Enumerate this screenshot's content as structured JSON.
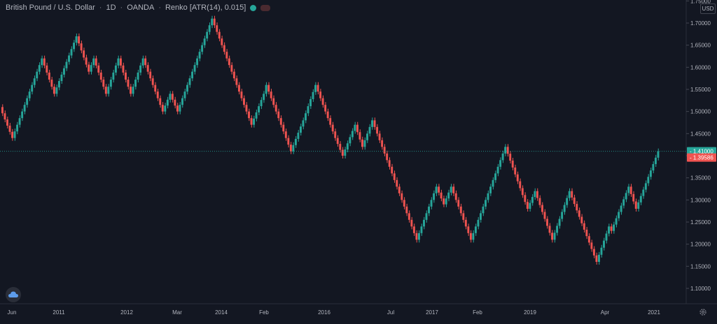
{
  "header": {
    "symbol": "British Pound / U.S. Dollar",
    "interval": "1D",
    "exchange": "OANDA",
    "study": "Renko [ATR(14), 0.015]"
  },
  "axis": {
    "currency": "USD",
    "price_labels": [
      "1.75000",
      "1.70000",
      "1.65000",
      "1.60000",
      "1.55000",
      "1.50000",
      "1.45000",
      "1.40000",
      "1.35000",
      "1.30000",
      "1.25000",
      "1.20000",
      "1.15000",
      "1.10000"
    ],
    "time_labels": [
      "Jun",
      "2011",
      "2012",
      "Mar",
      "2014",
      "Feb",
      "2016",
      "Jul",
      "2017",
      "Feb",
      "2019",
      "Apr",
      "2021"
    ]
  },
  "price_tags": {
    "last": {
      "value": "1.41000",
      "color": "#26a69a"
    },
    "close": {
      "value": "1.39586",
      "color": "#ef5350"
    }
  },
  "colors": {
    "background": "#131722",
    "up": "#26a69a",
    "down": "#ef5350",
    "grid": "#1e222d",
    "axis_text": "#b2b5be"
  },
  "icons": {
    "logo": "tradingview-cloud-icon",
    "settings": "gear-icon"
  },
  "chart_data": {
    "type": "renko",
    "brick_size": 0.015,
    "ylim": [
      1.08,
      1.76
    ],
    "y_ticks": [
      1.75,
      1.7,
      1.65,
      1.6,
      1.55,
      1.5,
      1.45,
      1.4,
      1.35,
      1.3,
      1.25,
      1.2,
      1.15,
      1.1
    ],
    "time_axis": [
      "Jun",
      "2011",
      "2012",
      "Mar",
      "2014",
      "Feb",
      "2016",
      "Jul",
      "2017",
      "Feb",
      "2019",
      "Apr",
      "2021"
    ],
    "last_price": 1.41,
    "close_price": 1.39586,
    "waypoints": [
      1.51,
      1.44,
      1.62,
      1.54,
      1.67,
      1.59,
      1.62,
      1.54,
      1.62,
      1.54,
      1.62,
      1.5,
      1.54,
      1.5,
      1.71,
      1.47,
      1.54,
      1.56,
      1.41,
      1.48,
      1.56,
      1.44,
      1.4,
      1.47,
      1.42,
      1.48,
      1.21,
      1.33,
      1.29,
      1.33,
      1.21,
      1.24,
      1.42,
      1.28,
      1.32,
      1.21,
      1.32,
      1.16,
      1.24,
      1.23,
      1.33,
      1.28,
      1.41
    ],
    "series": [
      {
        "name": "Up brick",
        "color": "#26a69a"
      },
      {
        "name": "Down brick",
        "color": "#ef5350"
      }
    ],
    "grid": false,
    "legend": "none"
  }
}
